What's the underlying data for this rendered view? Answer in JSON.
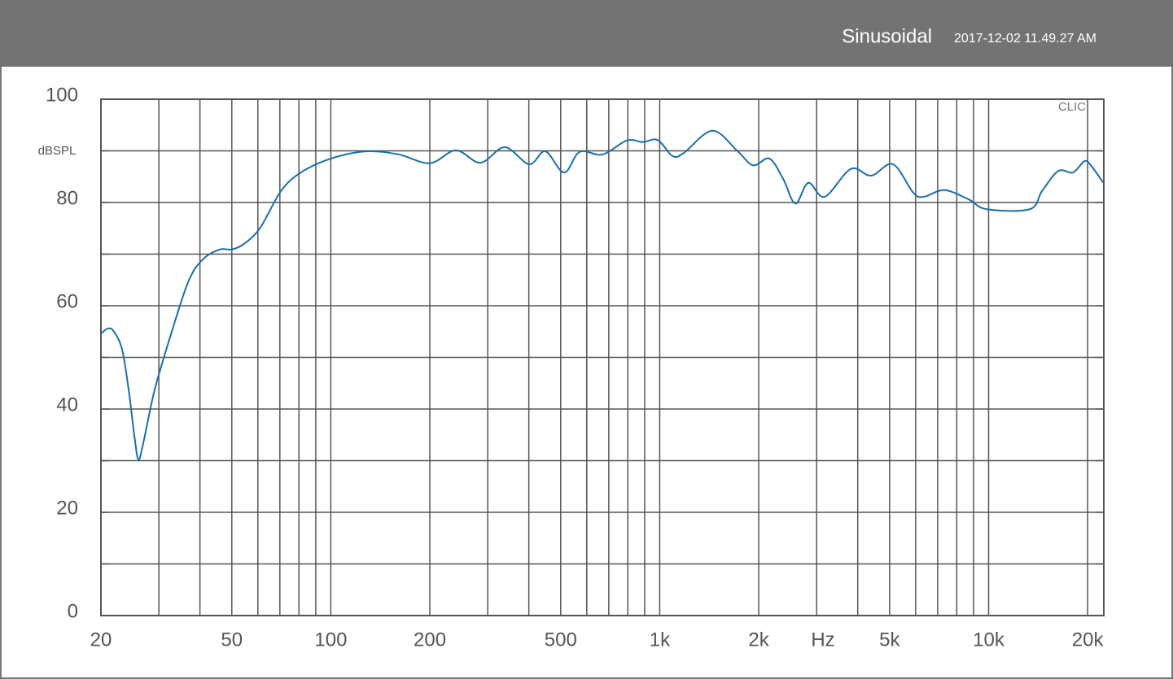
{
  "header": {
    "title": "Sinusoidal",
    "timestamp": "2017-12-02 11.49.27 AM"
  },
  "chart_data": {
    "type": "line",
    "watermark": "CLIC",
    "x_label": "Hz",
    "y_label": "dBSPL",
    "xscale": "log",
    "grid": true,
    "xlim": [
      20,
      22400
    ],
    "ylim": [
      0,
      100
    ],
    "xticks": [
      20,
      50,
      100,
      200,
      500,
      {
        "value": 1000,
        "label": "1k"
      },
      {
        "value": 2000,
        "label": "2k"
      },
      {
        "value": 5000,
        "label": "5k"
      },
      {
        "value": 10000,
        "label": "10k"
      },
      {
        "value": 20000,
        "label": "20k"
      }
    ],
    "xminor": [
      30,
      40,
      60,
      70,
      80,
      90,
      300,
      400,
      600,
      700,
      800,
      900,
      3000,
      4000,
      6000,
      7000,
      8000,
      9000
    ],
    "yticks": [
      0,
      20,
      40,
      60,
      80,
      100
    ],
    "yminor": [
      10,
      30,
      50,
      70,
      90
    ],
    "series": [
      {
        "color": "#1a6fad",
        "x": [
          20,
          21,
          21.9,
          23.2,
          24.3,
          25.3,
          26,
          26.9,
          29.1,
          32.7,
          37,
          41,
          46,
          50,
          54.5,
          61,
          70.5,
          81,
          100,
          128,
          161,
          200,
          240,
          285,
          338,
          401,
          449,
          512,
          571,
          670,
          794,
          890,
          986,
          1094,
          1184,
          1445,
          1715,
          1922,
          2155,
          2372,
          2585,
          2830,
          3174,
          3810,
          4393,
          5120,
          5900,
          6360,
          7330,
          8700,
          9860,
          13340,
          14530,
          16290,
          18040,
          19550,
          20460,
          22280
        ],
        "values": [
          54.6,
          55.6,
          55,
          51.5,
          43.6,
          34.6,
          30.2,
          33.4,
          43.6,
          54.6,
          64.9,
          69.1,
          70.9,
          70.9,
          72,
          75.1,
          82.2,
          85.8,
          88.5,
          89.9,
          89.3,
          87.6,
          90.1,
          87.7,
          90.7,
          87.4,
          89.9,
          85.8,
          89.8,
          89.3,
          92,
          91.7,
          92.1,
          89,
          89.6,
          93.9,
          90.1,
          87.2,
          88.5,
          84.6,
          79.8,
          83.8,
          81.1,
          86.5,
          85.2,
          87.4,
          81.9,
          81.1,
          82.4,
          80.6,
          78.7,
          78.7,
          82.2,
          86.1,
          85.8,
          88,
          87.2,
          83.9
        ]
      }
    ]
  }
}
